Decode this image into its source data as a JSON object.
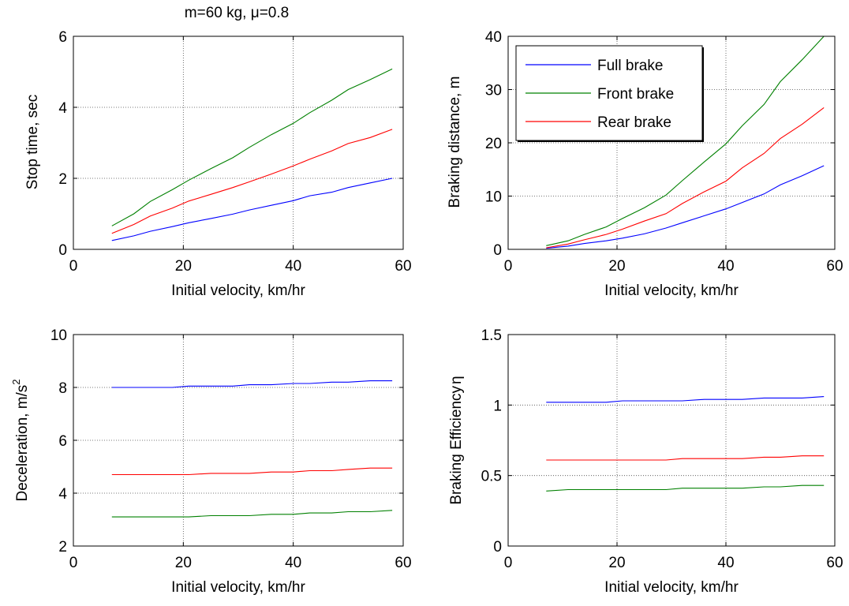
{
  "chart_data": [
    {
      "type": "line",
      "title": "m=60 kg, μ=0.8",
      "xlabel": "Initial velocity, km/hr",
      "ylabel": "Stop time, sec",
      "xlim": [
        0,
        60
      ],
      "ylim": [
        0,
        6
      ],
      "xticks": [
        "0",
        "20",
        "40",
        "60"
      ],
      "yticks": [
        "0",
        "2",
        "4",
        "6"
      ],
      "grid": true,
      "x": [
        7,
        11,
        14,
        18,
        21,
        25,
        29,
        32,
        36,
        40,
        43,
        47,
        50,
        54,
        58
      ],
      "series": [
        {
          "name": "Full brake",
          "color": "#0000ff",
          "values": [
            0.25,
            0.38,
            0.51,
            0.64,
            0.75,
            0.87,
            0.99,
            1.11,
            1.24,
            1.37,
            1.51,
            1.61,
            1.74,
            1.87,
            2.0
          ]
        },
        {
          "name": "Front brake",
          "color": "#008000",
          "values": [
            0.66,
            1.0,
            1.35,
            1.68,
            1.95,
            2.27,
            2.58,
            2.87,
            3.23,
            3.55,
            3.85,
            4.2,
            4.5,
            4.78,
            5.08
          ]
        },
        {
          "name": "Rear brake",
          "color": "#ff0000",
          "values": [
            0.45,
            0.7,
            0.94,
            1.16,
            1.36,
            1.55,
            1.74,
            1.9,
            2.12,
            2.35,
            2.54,
            2.77,
            2.98,
            3.15,
            3.38
          ]
        }
      ]
    },
    {
      "type": "line",
      "title": "",
      "xlabel": "Initial velocity, km/hr",
      "ylabel": "Braking distance, m",
      "xlim": [
        0,
        60
      ],
      "ylim": [
        0,
        40
      ],
      "xticks": [
        "0",
        "20",
        "40",
        "60"
      ],
      "yticks": [
        "0",
        "10",
        "20",
        "30",
        "40"
      ],
      "grid": true,
      "legend": {
        "placement": "top-left",
        "entries": [
          "Full brake",
          "Front brake",
          "Rear brake"
        ]
      },
      "x": [
        7,
        11,
        14,
        18,
        21,
        25,
        29,
        32,
        36,
        40,
        43,
        47,
        50,
        54,
        58
      ],
      "series": [
        {
          "name": "Full brake",
          "color": "#0000ff",
          "values": [
            0.2,
            0.6,
            1.1,
            1.6,
            2.1,
            2.9,
            4.0,
            5.0,
            6.3,
            7.6,
            8.8,
            10.4,
            12.1,
            13.8,
            15.7
          ]
        },
        {
          "name": "Front brake",
          "color": "#008000",
          "values": [
            0.7,
            1.6,
            2.8,
            4.2,
            5.8,
            7.8,
            10.2,
            12.9,
            16.4,
            19.8,
            23.2,
            27.2,
            31.5,
            35.6,
            40.0
          ]
        },
        {
          "name": "Rear brake",
          "color": "#ff0000",
          "values": [
            0.3,
            1.0,
            1.8,
            2.8,
            3.8,
            5.3,
            6.7,
            8.6,
            10.8,
            12.8,
            15.3,
            18.0,
            20.8,
            23.5,
            26.6
          ]
        }
      ]
    },
    {
      "type": "line",
      "title": "",
      "xlabel": "Initial velocity, km/hr",
      "ylabel": "Deceleration, m/s",
      "ylabel_sup": "2",
      "xlim": [
        0,
        60
      ],
      "ylim": [
        2,
        10
      ],
      "xticks": [
        "0",
        "20",
        "40",
        "60"
      ],
      "yticks": [
        "2",
        "4",
        "6",
        "8",
        "10"
      ],
      "grid": true,
      "x": [
        7,
        11,
        14,
        18,
        21,
        25,
        29,
        32,
        36,
        40,
        43,
        47,
        50,
        54,
        58
      ],
      "series": [
        {
          "name": "Full brake",
          "color": "#0000ff",
          "values": [
            8.0,
            8.0,
            8.0,
            8.0,
            8.05,
            8.05,
            8.05,
            8.1,
            8.1,
            8.15,
            8.15,
            8.2,
            8.2,
            8.25,
            8.25
          ]
        },
        {
          "name": "Front brake",
          "color": "#008000",
          "values": [
            3.1,
            3.1,
            3.1,
            3.1,
            3.1,
            3.15,
            3.15,
            3.15,
            3.2,
            3.2,
            3.25,
            3.25,
            3.3,
            3.3,
            3.35
          ]
        },
        {
          "name": "Rear brake",
          "color": "#ff0000",
          "values": [
            4.7,
            4.7,
            4.7,
            4.7,
            4.7,
            4.75,
            4.75,
            4.75,
            4.8,
            4.8,
            4.85,
            4.85,
            4.9,
            4.95,
            4.95
          ]
        }
      ]
    },
    {
      "type": "line",
      "title": "",
      "xlabel": "Initial velocity, km/hr",
      "ylabel": "Braking Efficiency",
      "ylabel_symbol": "η",
      "xlim": [
        0,
        60
      ],
      "ylim": [
        0,
        1.5
      ],
      "xticks": [
        "0",
        "20",
        "40",
        "60"
      ],
      "yticks": [
        "0",
        "0.5",
        "1",
        "1.5"
      ],
      "grid": true,
      "x": [
        7,
        11,
        14,
        18,
        21,
        25,
        29,
        32,
        36,
        40,
        43,
        47,
        50,
        54,
        58
      ],
      "series": [
        {
          "name": "Full brake",
          "color": "#0000ff",
          "values": [
            1.02,
            1.02,
            1.02,
            1.02,
            1.03,
            1.03,
            1.03,
            1.03,
            1.04,
            1.04,
            1.04,
            1.05,
            1.05,
            1.05,
            1.06
          ]
        },
        {
          "name": "Front brake",
          "color": "#008000",
          "values": [
            0.39,
            0.4,
            0.4,
            0.4,
            0.4,
            0.4,
            0.4,
            0.41,
            0.41,
            0.41,
            0.41,
            0.42,
            0.42,
            0.43,
            0.43
          ]
        },
        {
          "name": "Rear brake",
          "color": "#ff0000",
          "values": [
            0.61,
            0.61,
            0.61,
            0.61,
            0.61,
            0.61,
            0.61,
            0.62,
            0.62,
            0.62,
            0.62,
            0.63,
            0.63,
            0.64,
            0.64
          ]
        }
      ]
    }
  ]
}
